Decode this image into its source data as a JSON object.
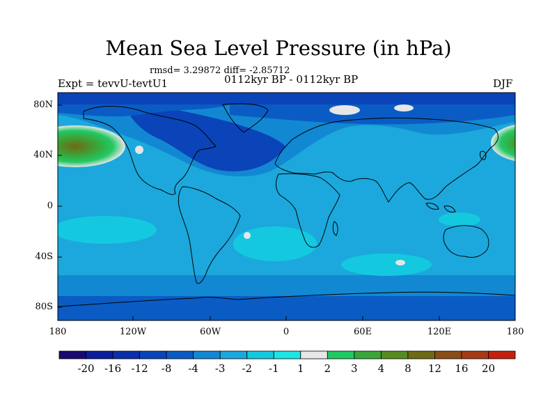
{
  "title": "Mean Sea Level Pressure (in hPa)",
  "stats": "rmsd= 3.29872 diff= -2.85712",
  "left_label": "Expt = tevvU-tevtU1",
  "center_label": "0112kyr BP - 0112kyr BP",
  "right_label": "DJF",
  "lat_labels": [
    "80N",
    "40N",
    "0",
    "40S",
    "80S"
  ],
  "lon_labels": [
    "180",
    "120W",
    "60W",
    "0",
    "60E",
    "120E",
    "180"
  ],
  "colorbar": {
    "labels": [
      "-20",
      "-16",
      "-12",
      "-8",
      "-4",
      "-3",
      "-2",
      "-1",
      "1",
      "2",
      "3",
      "4",
      "8",
      "12",
      "16",
      "20"
    ],
    "colors": [
      "#1a0a6e",
      "#0c1e9a",
      "#0a2fa8",
      "#0a44b8",
      "#0a5cc4",
      "#1288d2",
      "#1ca8dc",
      "#14c8e0",
      "#1ee4e4",
      "#e6e6e6",
      "#22c864",
      "#3aa63a",
      "#568c1e",
      "#6e6a14",
      "#8a4e14",
      "#a63a14",
      "#c42010"
    ]
  }
}
